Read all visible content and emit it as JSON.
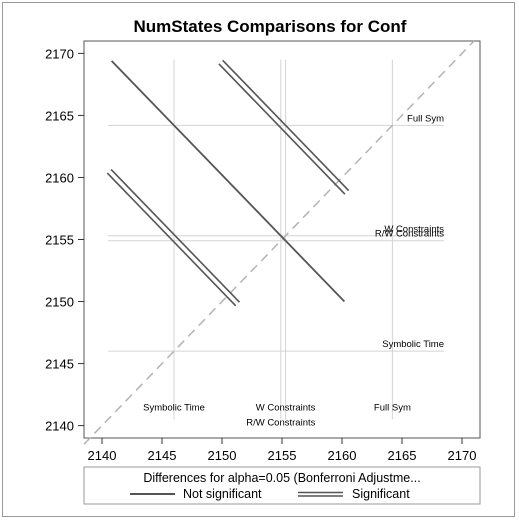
{
  "chart_data": {
    "type": "line",
    "title": "NumStates Comparisons for Conf",
    "xlabel": "",
    "ylabel": "",
    "xlim": [
      2138.5,
      2171.5
    ],
    "ylim": [
      2139,
      2171
    ],
    "x_ticks": [
      2140,
      2145,
      2150,
      2155,
      2160,
      2165,
      2170
    ],
    "y_ticks": [
      2140,
      2145,
      2150,
      2155,
      2160,
      2165,
      2170
    ],
    "diagonal_reference": true,
    "group_means": [
      {
        "label": "Symbolic Time",
        "mean": 2146.0
      },
      {
        "label": "R/W Constraints",
        "mean": 2154.9
      },
      {
        "label": "W Constraints",
        "mean": 2155.3
      },
      {
        "label": "Full Sym",
        "mean": 2164.2
      }
    ],
    "x_axis_labels": [
      {
        "text": "Symbolic Time",
        "x": 2146.0,
        "y": 2141.2
      },
      {
        "text": "R/W Constraints",
        "x": 2154.9,
        "y": 2140.0
      },
      {
        "text": "W Constraints",
        "x": 2155.3,
        "y": 2141.2
      },
      {
        "text": "Full Sym",
        "x": 2164.2,
        "y": 2141.2
      }
    ],
    "y_axis_labels": [
      {
        "text": "Full Sym",
        "x": 2168.5,
        "y": 2164.2
      },
      {
        "text": "W Constraints",
        "x": 2168.5,
        "y": 2155.3
      },
      {
        "text": "R/W Constraints",
        "x": 2168.5,
        "y": 2154.9
      },
      {
        "text": "Symbolic Time",
        "x": 2168.5,
        "y": 2146.0
      }
    ],
    "series": [
      {
        "name": "Not significant",
        "style": "single",
        "segments": [
          {
            "x1": 2140.8,
            "y1": 2169.4,
            "x2": 2160.2,
            "y2": 2150.0
          }
        ]
      },
      {
        "name": "Significant",
        "style": "double",
        "segments": [
          {
            "x1": 2149.9,
            "y1": 2169.3,
            "x2": 2160.4,
            "y2": 2158.8
          },
          {
            "x1": 2140.6,
            "y1": 2160.5,
            "x2": 2151.3,
            "y2": 2149.8
          }
        ]
      }
    ],
    "colors": {
      "line": "#555555",
      "grid": "#d4d4d4",
      "diagonal": "#b3b3b3"
    }
  },
  "legend": {
    "title": "Differences for alpha=0.05 (Bonferroni Adjustme...",
    "items": [
      {
        "label": "Not significant"
      },
      {
        "label": "Significant"
      }
    ]
  }
}
